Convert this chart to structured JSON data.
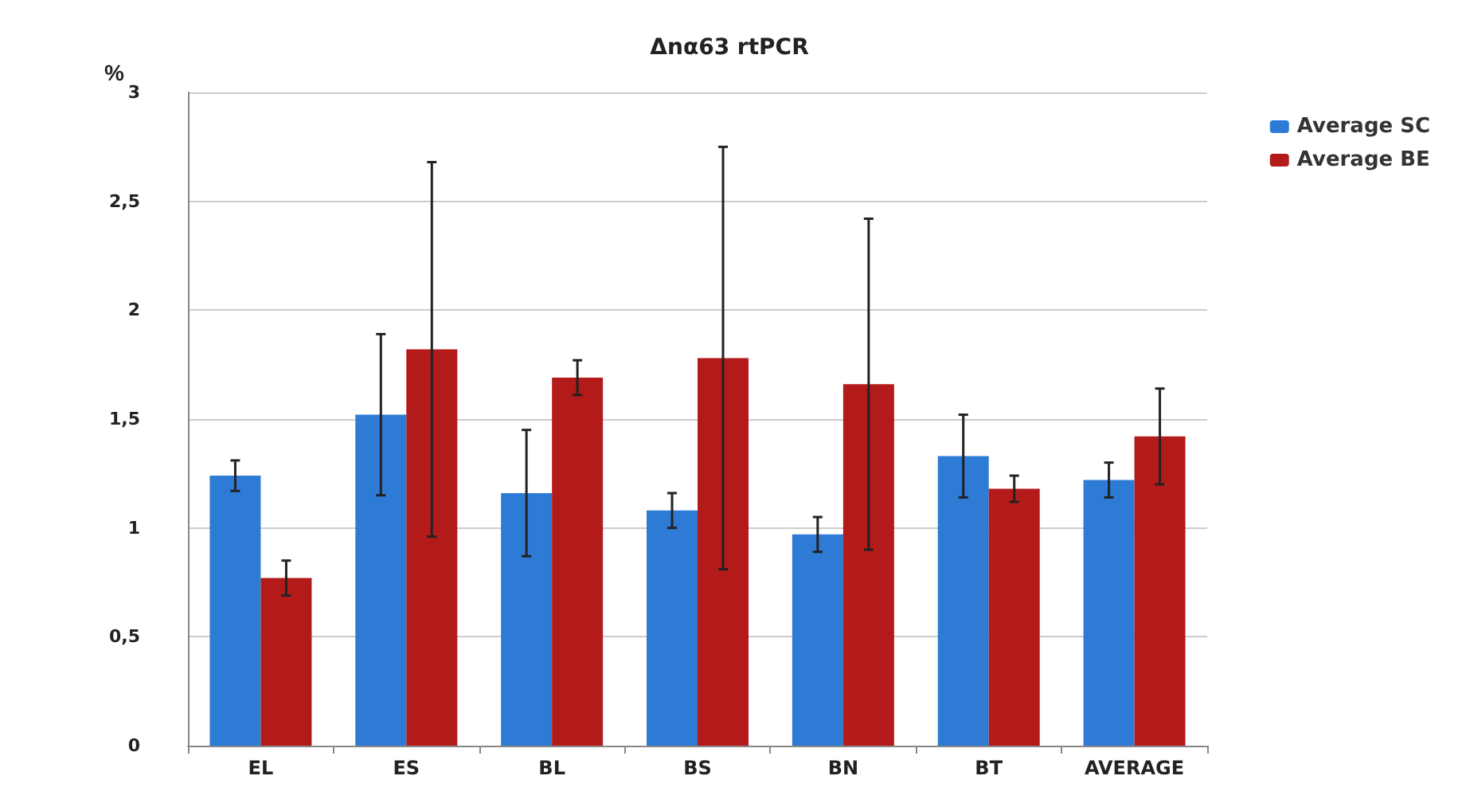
{
  "chart_data": {
    "type": "bar",
    "title": "Δnα63 rtPCR",
    "ylabel": "%",
    "categories": [
      "EL",
      "ES",
      "BL",
      "BS",
      "BN",
      "BT",
      "AVERAGE"
    ],
    "series": [
      {
        "name": "Average SC",
        "color": "#2e7bd6",
        "values": [
          1.24,
          1.52,
          1.16,
          1.08,
          0.97,
          1.33,
          1.22
        ],
        "errors": [
          0.07,
          0.37,
          0.29,
          0.08,
          0.08,
          0.19,
          0.08
        ]
      },
      {
        "name": "Average BE",
        "color": "#b31b1b",
        "values": [
          0.77,
          1.82,
          1.69,
          1.78,
          1.66,
          1.18,
          1.42
        ],
        "errors": [
          0.08,
          0.86,
          0.08,
          0.97,
          0.76,
          0.06,
          0.22
        ]
      }
    ],
    "ylim": [
      0,
      3
    ],
    "yticks": [
      0,
      {
        "value": 0.5,
        "label": "0,5"
      },
      1,
      {
        "value": 1.5,
        "label": "1,5"
      },
      2,
      {
        "value": 2.5,
        "label": "2,5"
      },
      3
    ],
    "grid": "y",
    "legend": "top right"
  }
}
